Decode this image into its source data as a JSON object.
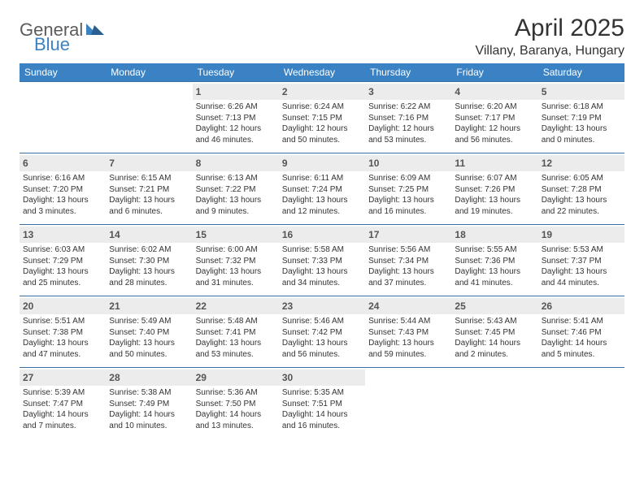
{
  "logo": {
    "text1": "General",
    "text2": "Blue"
  },
  "title": "April 2025",
  "location": "Villany, Baranya, Hungary",
  "colors": {
    "header_bg": "#3b82c4",
    "header_text": "#ffffff",
    "cell_border": "#3b6fa0",
    "daynum_bg": "#ececec",
    "body_text": "#333333"
  },
  "daysOfWeek": [
    "Sunday",
    "Monday",
    "Tuesday",
    "Wednesday",
    "Thursday",
    "Friday",
    "Saturday"
  ],
  "firstWeekday": 2,
  "daysInMonth": 30,
  "days": {
    "1": {
      "sunrise": "6:26 AM",
      "sunset": "7:13 PM",
      "daylight": "12 hours and 46 minutes."
    },
    "2": {
      "sunrise": "6:24 AM",
      "sunset": "7:15 PM",
      "daylight": "12 hours and 50 minutes."
    },
    "3": {
      "sunrise": "6:22 AM",
      "sunset": "7:16 PM",
      "daylight": "12 hours and 53 minutes."
    },
    "4": {
      "sunrise": "6:20 AM",
      "sunset": "7:17 PM",
      "daylight": "12 hours and 56 minutes."
    },
    "5": {
      "sunrise": "6:18 AM",
      "sunset": "7:19 PM",
      "daylight": "13 hours and 0 minutes."
    },
    "6": {
      "sunrise": "6:16 AM",
      "sunset": "7:20 PM",
      "daylight": "13 hours and 3 minutes."
    },
    "7": {
      "sunrise": "6:15 AM",
      "sunset": "7:21 PM",
      "daylight": "13 hours and 6 minutes."
    },
    "8": {
      "sunrise": "6:13 AM",
      "sunset": "7:22 PM",
      "daylight": "13 hours and 9 minutes."
    },
    "9": {
      "sunrise": "6:11 AM",
      "sunset": "7:24 PM",
      "daylight": "13 hours and 12 minutes."
    },
    "10": {
      "sunrise": "6:09 AM",
      "sunset": "7:25 PM",
      "daylight": "13 hours and 16 minutes."
    },
    "11": {
      "sunrise": "6:07 AM",
      "sunset": "7:26 PM",
      "daylight": "13 hours and 19 minutes."
    },
    "12": {
      "sunrise": "6:05 AM",
      "sunset": "7:28 PM",
      "daylight": "13 hours and 22 minutes."
    },
    "13": {
      "sunrise": "6:03 AM",
      "sunset": "7:29 PM",
      "daylight": "13 hours and 25 minutes."
    },
    "14": {
      "sunrise": "6:02 AM",
      "sunset": "7:30 PM",
      "daylight": "13 hours and 28 minutes."
    },
    "15": {
      "sunrise": "6:00 AM",
      "sunset": "7:32 PM",
      "daylight": "13 hours and 31 minutes."
    },
    "16": {
      "sunrise": "5:58 AM",
      "sunset": "7:33 PM",
      "daylight": "13 hours and 34 minutes."
    },
    "17": {
      "sunrise": "5:56 AM",
      "sunset": "7:34 PM",
      "daylight": "13 hours and 37 minutes."
    },
    "18": {
      "sunrise": "5:55 AM",
      "sunset": "7:36 PM",
      "daylight": "13 hours and 41 minutes."
    },
    "19": {
      "sunrise": "5:53 AM",
      "sunset": "7:37 PM",
      "daylight": "13 hours and 44 minutes."
    },
    "20": {
      "sunrise": "5:51 AM",
      "sunset": "7:38 PM",
      "daylight": "13 hours and 47 minutes."
    },
    "21": {
      "sunrise": "5:49 AM",
      "sunset": "7:40 PM",
      "daylight": "13 hours and 50 minutes."
    },
    "22": {
      "sunrise": "5:48 AM",
      "sunset": "7:41 PM",
      "daylight": "13 hours and 53 minutes."
    },
    "23": {
      "sunrise": "5:46 AM",
      "sunset": "7:42 PM",
      "daylight": "13 hours and 56 minutes."
    },
    "24": {
      "sunrise": "5:44 AM",
      "sunset": "7:43 PM",
      "daylight": "13 hours and 59 minutes."
    },
    "25": {
      "sunrise": "5:43 AM",
      "sunset": "7:45 PM",
      "daylight": "14 hours and 2 minutes."
    },
    "26": {
      "sunrise": "5:41 AM",
      "sunset": "7:46 PM",
      "daylight": "14 hours and 5 minutes."
    },
    "27": {
      "sunrise": "5:39 AM",
      "sunset": "7:47 PM",
      "daylight": "14 hours and 7 minutes."
    },
    "28": {
      "sunrise": "5:38 AM",
      "sunset": "7:49 PM",
      "daylight": "14 hours and 10 minutes."
    },
    "29": {
      "sunrise": "5:36 AM",
      "sunset": "7:50 PM",
      "daylight": "14 hours and 13 minutes."
    },
    "30": {
      "sunrise": "5:35 AM",
      "sunset": "7:51 PM",
      "daylight": "14 hours and 16 minutes."
    }
  },
  "labels": {
    "sunrise": "Sunrise:",
    "sunset": "Sunset:",
    "daylight": "Daylight:"
  }
}
